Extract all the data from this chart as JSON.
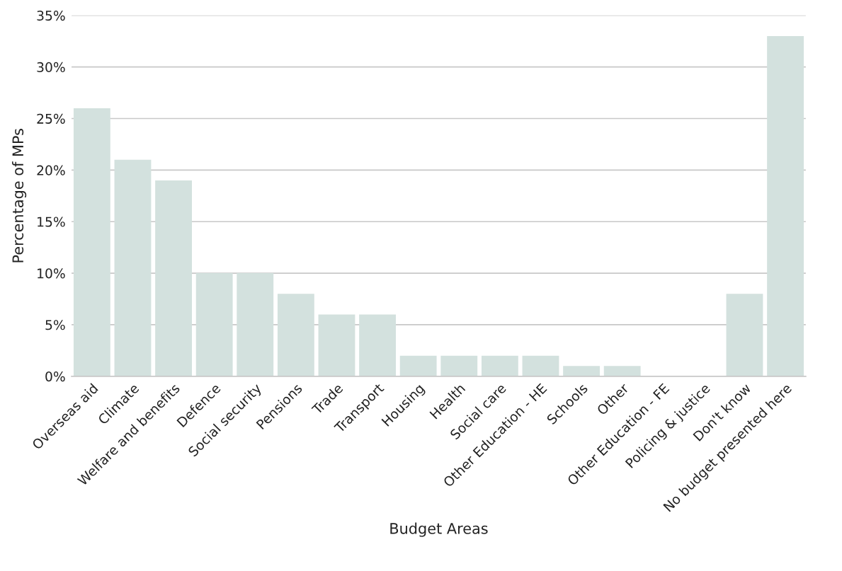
{
  "chart_data": {
    "type": "bar",
    "xlabel": "Budget Areas",
    "ylabel": "Percentage of MPs",
    "categories": [
      "Overseas aid",
      "Climate",
      "Welfare and benefits",
      "Defence",
      "Social security",
      "Pensions",
      "Trade",
      "Transport",
      "Housing",
      "Health",
      "Social care",
      "Other Education - HE",
      "Schools",
      "Other",
      "Other Education - FE",
      "Policing & justice",
      "Don't know",
      "No budget presented here"
    ],
    "values": [
      26,
      21,
      19,
      10,
      10,
      8,
      6,
      6,
      2,
      2,
      2,
      2,
      1,
      1,
      0,
      0,
      8,
      33
    ],
    "color": "#d3e1de",
    "ylim": [
      0,
      35
    ],
    "yticks": [
      {
        "value": 0,
        "label": "0%"
      },
      {
        "value": 5,
        "label": "5%"
      },
      {
        "value": 10,
        "label": "10%"
      },
      {
        "value": 15,
        "label": "15%"
      },
      {
        "value": 20,
        "label": "20%"
      },
      {
        "value": 25,
        "label": "25%"
      },
      {
        "value": 30,
        "label": "30%"
      },
      {
        "value": 35,
        "label": "35%"
      }
    ],
    "grid": "y"
  }
}
